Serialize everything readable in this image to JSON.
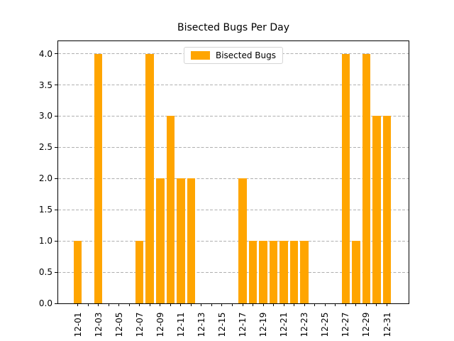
{
  "chart_data": {
    "type": "bar",
    "title": "Bisected Bugs Per Day",
    "xlabel": "",
    "ylabel": "",
    "categories": [
      "12-01",
      "12-02",
      "12-03",
      "12-04",
      "12-05",
      "12-06",
      "12-07",
      "12-08",
      "12-09",
      "12-10",
      "12-11",
      "12-12",
      "12-13",
      "12-14",
      "12-15",
      "12-16",
      "12-17",
      "12-18",
      "12-19",
      "12-20",
      "12-21",
      "12-22",
      "12-23",
      "12-24",
      "12-25",
      "12-26",
      "12-27",
      "12-28",
      "12-29",
      "12-30",
      "12-31"
    ],
    "series": [
      {
        "name": "Bisected Bugs",
        "values": [
          1,
          0,
          4,
          0,
          0,
          0,
          1,
          4,
          2,
          3,
          2,
          2,
          0,
          0,
          0,
          0,
          2,
          1,
          1,
          1,
          1,
          1,
          1,
          0,
          0,
          0,
          4,
          1,
          4,
          3,
          3
        ]
      }
    ],
    "legend": {
      "label": "Bisected Bugs",
      "position": "upper center"
    },
    "bar_color": "#FFA500",
    "ylim": [
      0,
      4.2
    ],
    "ytick_labels": [
      "0.0",
      "0.5",
      "1.0",
      "1.5",
      "2.0",
      "2.5",
      "3.0",
      "3.5",
      "4.0"
    ],
    "xtick_labels": [
      "12-01",
      "12-03",
      "12-05",
      "12-07",
      "12-09",
      "12-11",
      "12-13",
      "12-15",
      "12-17",
      "12-19",
      "12-21",
      "12-23",
      "12-25",
      "12-27",
      "12-29",
      "12-31"
    ],
    "xtick_label_rotation": 90,
    "grid": "horizontal dashed",
    "grid_color": "#b0b0b0"
  }
}
